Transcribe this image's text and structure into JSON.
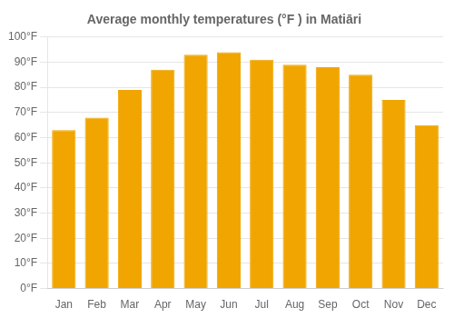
{
  "chart_data": {
    "type": "bar",
    "title": "Average monthly temperatures (°F ) in Matiāri",
    "categories": [
      "Jan",
      "Feb",
      "Mar",
      "Apr",
      "May",
      "Jun",
      "Jul",
      "Aug",
      "Sep",
      "Oct",
      "Nov",
      "Dec"
    ],
    "values": [
      63,
      68,
      79,
      87,
      93,
      94,
      91,
      89,
      88,
      85,
      75,
      65
    ],
    "color": "#F0A500",
    "ylim": [
      0,
      100
    ],
    "yticks": [
      {
        "value": 0,
        "label": "0°F"
      },
      {
        "value": 10,
        "label": "10°F"
      },
      {
        "value": 20,
        "label": "20°F"
      },
      {
        "value": 30,
        "label": "30°F"
      },
      {
        "value": 40,
        "label": "40°F"
      },
      {
        "value": 50,
        "label": "50°F"
      },
      {
        "value": 60,
        "label": "60°F"
      },
      {
        "value": 70,
        "label": "70°F"
      },
      {
        "value": 80,
        "label": "80°F"
      },
      {
        "value": 90,
        "label": "90°F"
      },
      {
        "value": 100,
        "label": "100°F"
      }
    ],
    "grid": true
  }
}
